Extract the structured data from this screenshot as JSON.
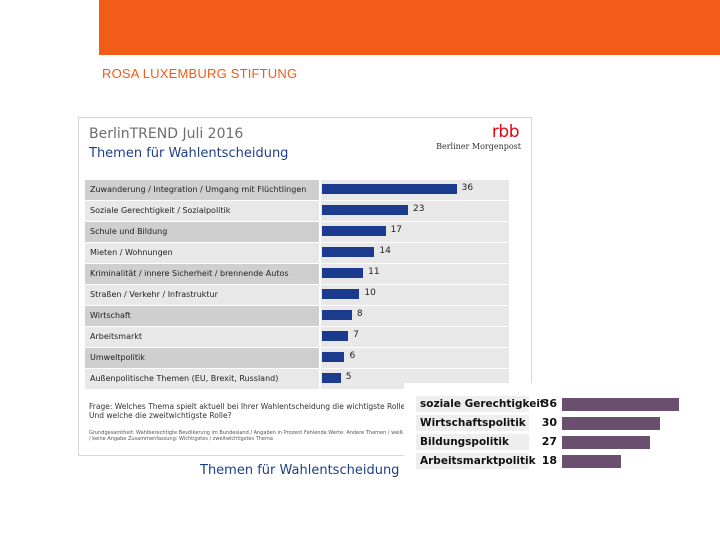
{
  "header": {
    "org_name": "ROSA LUXEMBURG STIFTUNG",
    "accent_color": "#f25c19"
  },
  "infographic": {
    "title": "BerlinTREND Juli 2016",
    "subtitle": "Themen für Wahlentscheidung",
    "logo_rbb": "rbb",
    "logo_bm": "Berliner Morgenpost",
    "question": "Frage: Welches Thema spielt aktuell bei Ihrer Wahlentscheidung die wichtigste Rolle? Und welche die zweitwichtigste Rolle?",
    "footnote": "Grundgesamtheit: Wahlberechtigte Bevölkerung im Bundesland / Angaben in Prozent Fehlende Werte: Andere Themen / weiß nicht / keine Angabe Zusammenfassung: Wichtigstes / zweitwichtigstes Thema",
    "caption": "Themen für Wahlentscheidung"
  },
  "chart_data": [
    {
      "type": "bar",
      "orientation": "horizontal",
      "title": "BerlinTREND Juli 2016",
      "subtitle": "Themen für Wahlentscheidung",
      "categories": [
        "Zuwanderung / Integration / Umgang mit Flüchtlingen",
        "Soziale Gerechtigkeit / Sozialpolitik",
        "Schule und Bildung",
        "Mieten / Wohnungen",
        "Kriminalität / innere Sicherheit / brennende Autos",
        "Straßen / Verkehr / Infrastruktur",
        "Wirtschaft",
        "Arbeitsmarkt",
        "Umweltpolitik",
        "Außenpolitische Themen (EU, Brexit, Russland)"
      ],
      "values": [
        36,
        23,
        17,
        14,
        11,
        10,
        8,
        7,
        6,
        5
      ],
      "xlim": [
        0,
        50
      ],
      "bar_color": "#1a3b8e"
    },
    {
      "type": "bar",
      "orientation": "horizontal",
      "categories": [
        "soziale Gerechtigkeit",
        "Wirtschaftspolitik",
        "Bildungspolitik",
        "Arbeitsmarktpolitik"
      ],
      "values": [
        36,
        30,
        27,
        18
      ],
      "xlim": [
        0,
        36
      ],
      "bar_color": "#6a4f6e"
    }
  ]
}
